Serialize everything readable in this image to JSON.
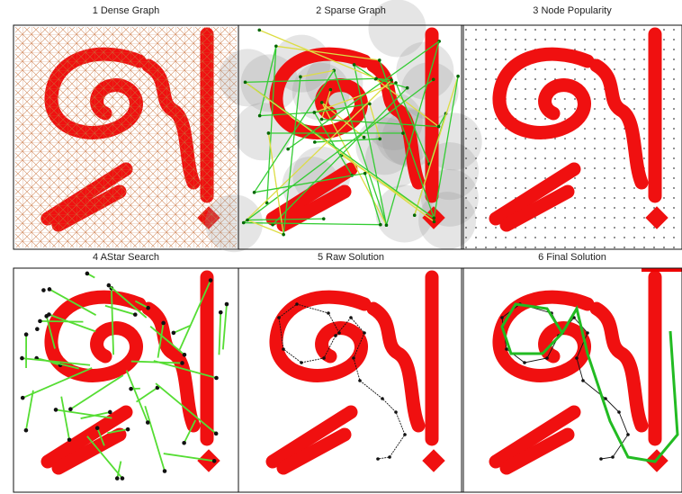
{
  "panels": [
    {
      "title": "1  Dense  Graph"
    },
    {
      "title": "2  Sparse  Graph"
    },
    {
      "title": "3  Node  Popularity"
    },
    {
      "title": "4  AStar  Search"
    },
    {
      "title": "5  Raw  Solution"
    },
    {
      "title": "6  Final  Solution"
    }
  ]
}
